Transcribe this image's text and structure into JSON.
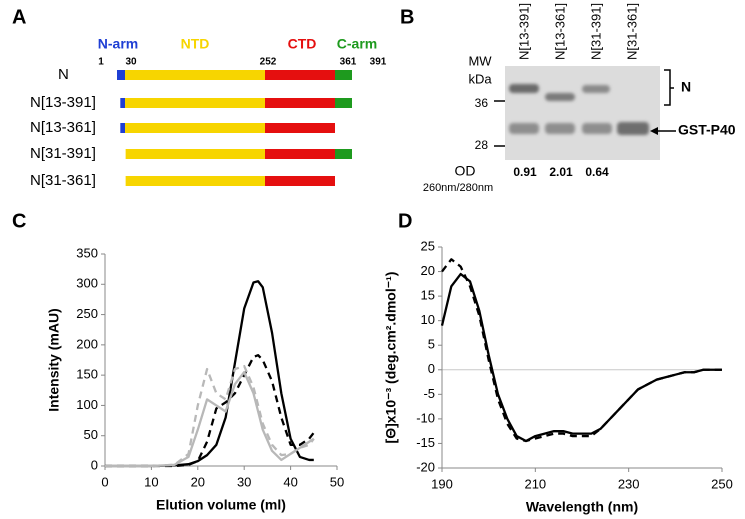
{
  "panel_a": {
    "label": "A",
    "domains": [
      {
        "name": "N-arm",
        "color": "#1f3fd4"
      },
      {
        "name": "NTD",
        "color": "#f7d500"
      },
      {
        "name": "CTD",
        "color": "#e50f0f"
      },
      {
        "name": "C-arm",
        "color": "#1e9a1e"
      }
    ],
    "boundaries": [
      1,
      30,
      252,
      361,
      391
    ],
    "constructs": [
      {
        "name": "N",
        "start": 1,
        "end": 391
      },
      {
        "name": "N[13-391]",
        "start": 13,
        "end": 391
      },
      {
        "name": "N[13-361]",
        "start": 13,
        "end": 361
      },
      {
        "name": "N[31-391]",
        "start": 31,
        "end": 391
      },
      {
        "name": "N[31-361]",
        "start": 31,
        "end": 361
      }
    ]
  },
  "panel_b": {
    "label": "B",
    "lanes": [
      "N[13-391]",
      "N[13-361]",
      "N[31-391]",
      "N[31-361]"
    ],
    "mw_label": "MW",
    "mw_unit": "kDa",
    "markers": [
      36,
      28
    ],
    "band_labels": [
      "N",
      "GST-P40"
    ],
    "od_label": "OD",
    "od_unit": "260nm/280nm",
    "od_values": [
      0.91,
      2.01,
      0.64
    ]
  },
  "chart_data": [
    {
      "type": "line",
      "panel_label": "C",
      "xlabel": "Elution volume (ml)",
      "ylabel": "Intensity (mAU)",
      "xlim": [
        0,
        50
      ],
      "ylim": [
        0,
        350
      ],
      "xticks": [
        0,
        10,
        20,
        30,
        40,
        50
      ],
      "yticks": [
        0,
        50,
        100,
        150,
        200,
        250,
        300,
        350
      ],
      "x": [
        0,
        5,
        10,
        15,
        18,
        20,
        22,
        24,
        26,
        28,
        30,
        32,
        33,
        34,
        36,
        38,
        40,
        42,
        44,
        45
      ],
      "series": [
        {
          "color": "#000000",
          "dash": false,
          "values": [
            0,
            0,
            0,
            1,
            3,
            8,
            18,
            35,
            80,
            170,
            260,
            303,
            305,
            295,
            220,
            120,
            45,
            15,
            10,
            10
          ]
        },
        {
          "color": "#000000",
          "dash": true,
          "values": [
            0,
            0,
            0,
            0,
            2,
            8,
            40,
            95,
            105,
            120,
            150,
            180,
            183,
            175,
            140,
            80,
            35,
            35,
            45,
            55
          ]
        },
        {
          "color": "#b8b8b8",
          "dash": false,
          "values": [
            0,
            0,
            0,
            2,
            15,
            60,
            110,
            100,
            90,
            135,
            155,
            120,
            90,
            60,
            25,
            10,
            20,
            30,
            40,
            45
          ]
        },
        {
          "color": "#b8b8b8",
          "dash": true,
          "values": [
            0,
            0,
            0,
            2,
            20,
            100,
            160,
            120,
            110,
            160,
            165,
            130,
            100,
            70,
            35,
            18,
            20,
            30,
            35,
            45
          ]
        }
      ]
    },
    {
      "type": "line",
      "panel_label": "D",
      "xlabel": "Wavelength (nm)",
      "ylabel": "[Θ]x10⁻³ (deg.cm².dmol⁻¹)",
      "xlim": [
        190,
        250
      ],
      "ylim": [
        -20,
        25
      ],
      "xticks": [
        190,
        210,
        230,
        250
      ],
      "yticks": [
        -20,
        -15,
        -10,
        -5,
        0,
        5,
        10,
        15,
        20,
        25
      ],
      "zero_line": true,
      "x": [
        190,
        192,
        194,
        196,
        198,
        200,
        202,
        204,
        206,
        208,
        210,
        212,
        214,
        216,
        218,
        220,
        222,
        224,
        226,
        228,
        230,
        232,
        234,
        236,
        238,
        240,
        242,
        244,
        246,
        248,
        250
      ],
      "series": [
        {
          "color": "#000000",
          "dash": false,
          "values": [
            9,
            17,
            19.5,
            18,
            12,
            3,
            -5,
            -10,
            -13.5,
            -14.5,
            -13.5,
            -13,
            -12.5,
            -12.5,
            -13,
            -13,
            -13,
            -12,
            -10,
            -8,
            -6,
            -4,
            -3,
            -2,
            -1.5,
            -1,
            -0.5,
            -0.5,
            0,
            0,
            0
          ]
        },
        {
          "color": "#000000",
          "dash": true,
          "values": [
            20,
            22.5,
            21,
            17,
            11,
            2,
            -6,
            -11,
            -14,
            -14.5,
            -14,
            -13.5,
            -13,
            -13,
            -13.5,
            -13.5,
            -13.5,
            -12,
            -10,
            -8,
            -6,
            -4,
            -3,
            -2,
            -1.5,
            -1,
            -0.5,
            -0.5,
            0,
            0,
            0
          ]
        }
      ]
    }
  ]
}
